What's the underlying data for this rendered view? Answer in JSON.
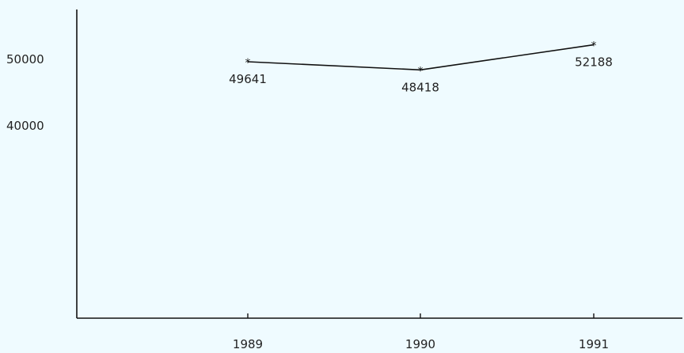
{
  "chart_data": {
    "type": "line",
    "categories": [
      "1989",
      "1990",
      "1991"
    ],
    "series": [
      {
        "values": [
          49641,
          48418,
          52188
        ]
      }
    ],
    "y_tick_labels": [
      "50000",
      "40000"
    ],
    "y_ticks": [
      50000,
      40000
    ],
    "title": "",
    "xlabel": "",
    "ylabel": "",
    "grid": false,
    "legend": "none",
    "colors": {
      "background": "#effbff",
      "line": "#111111",
      "axis": "#111111"
    }
  }
}
